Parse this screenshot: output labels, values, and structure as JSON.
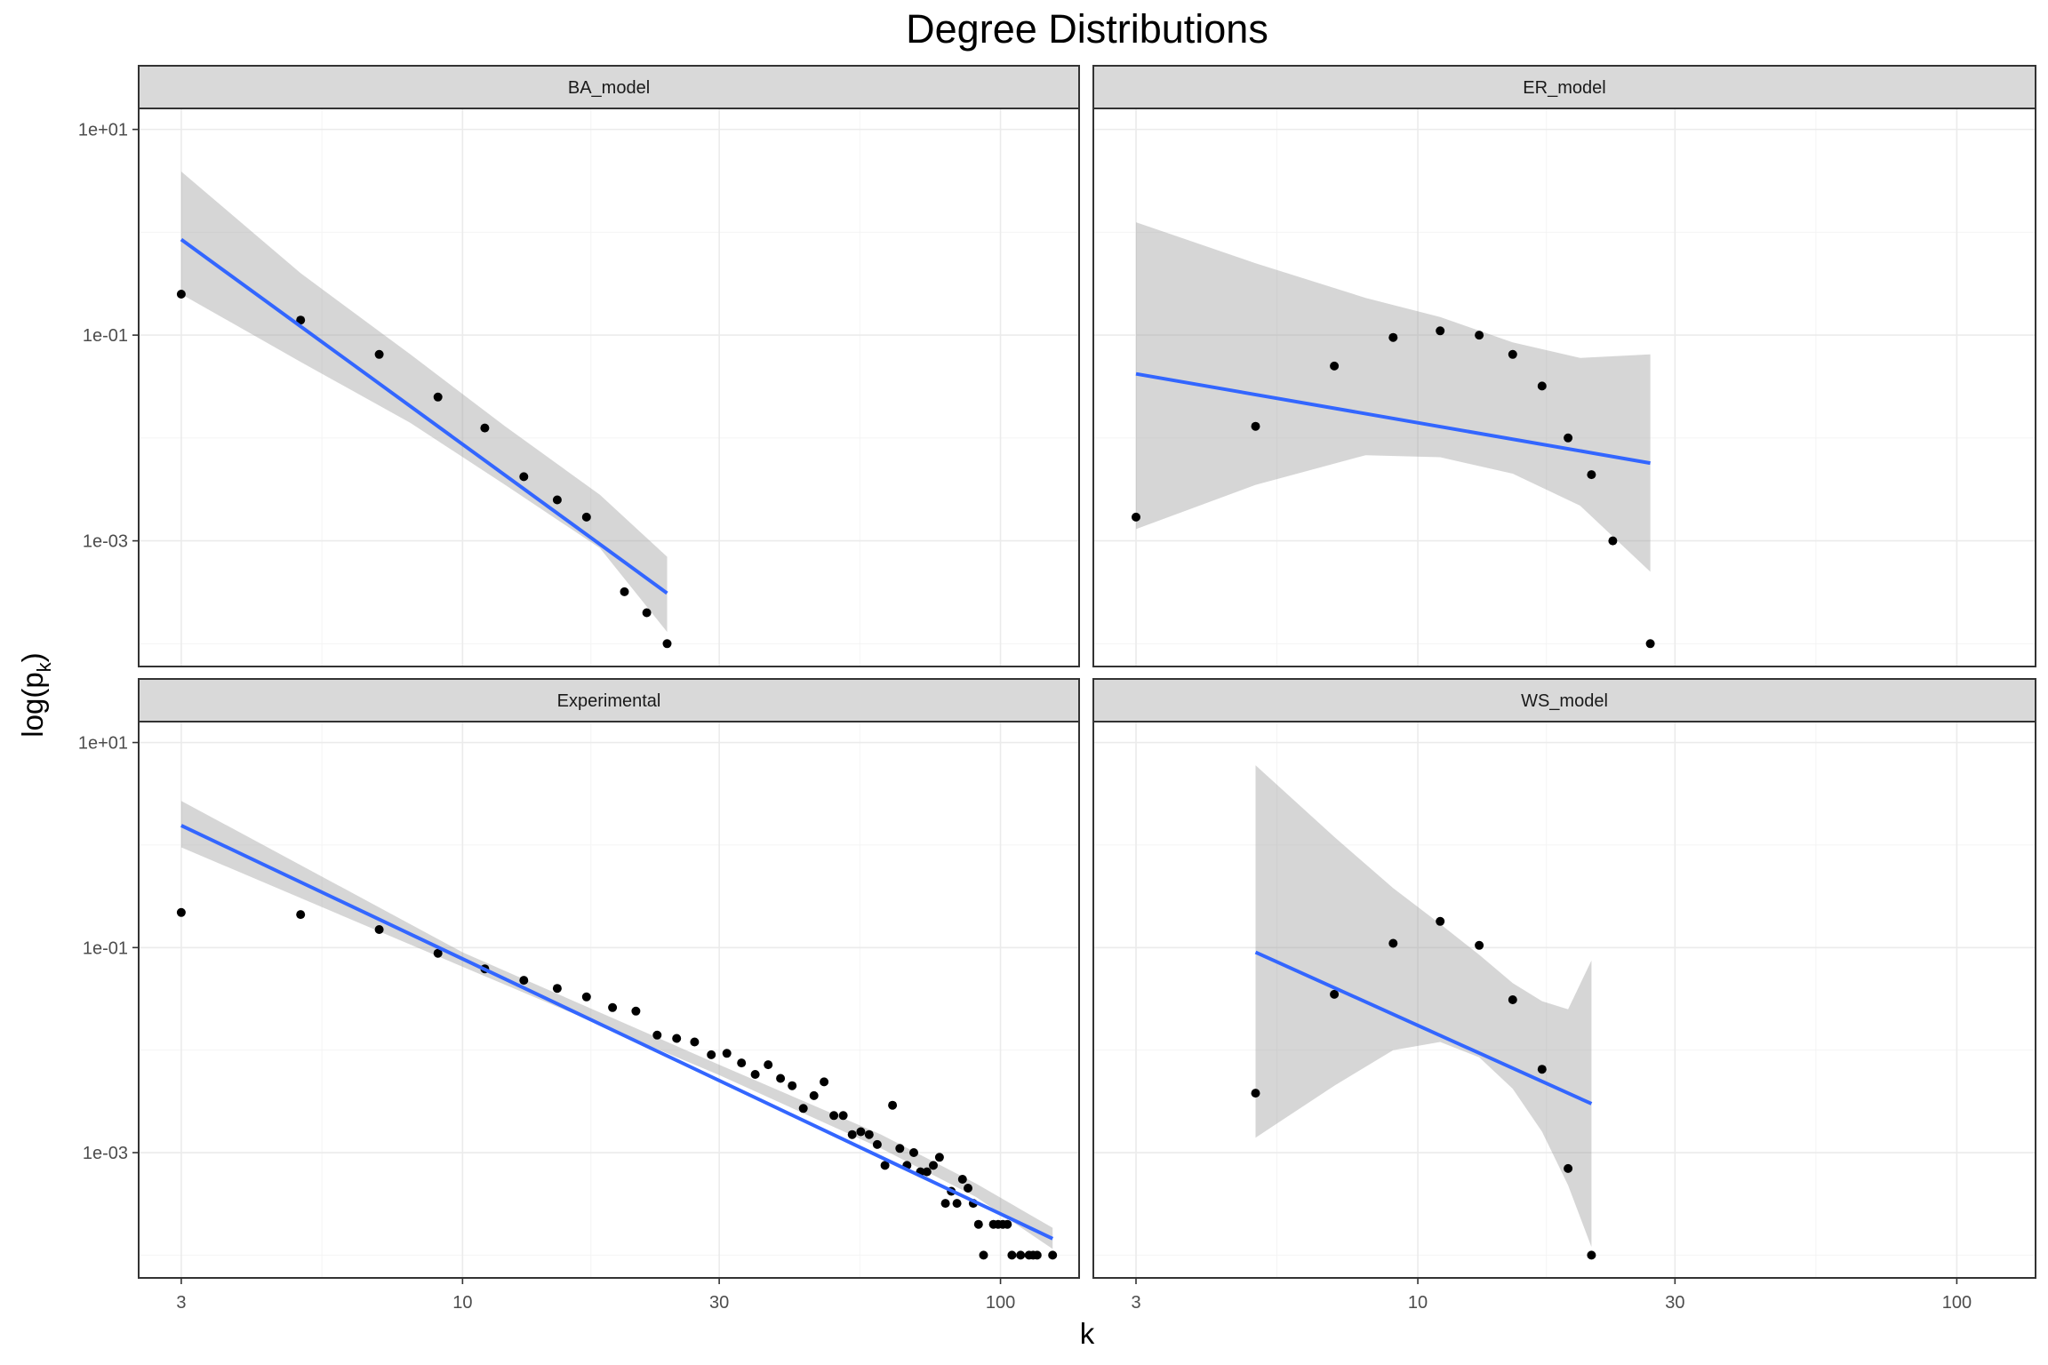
{
  "chart_data": {
    "type": "scatter",
    "title": "Degree Distributions",
    "xlabel": "k",
    "ylabel": "log(pk)",
    "ylabel_main": "log(p",
    "ylabel_sub": "k",
    "ylabel_close": ")",
    "x_scale": "log10",
    "y_scale": "log10",
    "xlim": [
      2.5,
      140
    ],
    "ylim": [
      6e-05,
      16
    ],
    "x_ticks": [
      3,
      10,
      30,
      100
    ],
    "x_tick_labels": [
      "3",
      "10",
      "30",
      "100"
    ],
    "y_ticks": [
      0.001,
      0.1,
      10
    ],
    "y_tick_labels": [
      "1e-03",
      "1e-01",
      "1e+01"
    ],
    "grid": true,
    "facets": [
      {
        "name": "BA_model",
        "points": [
          [
            3,
            0.25
          ],
          [
            5,
            0.14
          ],
          [
            7,
            0.065
          ],
          [
            9,
            0.025
          ],
          [
            11,
            0.0125
          ],
          [
            13,
            0.0042
          ],
          [
            15,
            0.0025
          ],
          [
            17,
            0.0017
          ],
          [
            20,
            0.00032
          ],
          [
            22,
            0.0002
          ],
          [
            24,
            0.0001
          ]
        ],
        "fit": {
          "x0": 3,
          "y0": 0.85,
          "x1": 24,
          "y1": 0.00031
        },
        "band": {
          "lower": [
            [
              3,
              0.25
            ],
            [
              5,
              0.055
            ],
            [
              8,
              0.014
            ],
            [
              12,
              0.0035
            ],
            [
              18,
              0.00085
            ],
            [
              24,
              0.00013
            ]
          ],
          "upper": [
            [
              3,
              3.9
            ],
            [
              5,
              0.4
            ],
            [
              8,
              0.065
            ],
            [
              12,
              0.013
            ],
            [
              18,
              0.0028
            ],
            [
              24,
              0.0007
            ]
          ]
        }
      },
      {
        "name": "ER_model",
        "points": [
          [
            3,
            0.0017
          ],
          [
            5,
            0.013
          ],
          [
            7,
            0.05
          ],
          [
            9,
            0.095
          ],
          [
            11,
            0.11
          ],
          [
            13,
            0.1
          ],
          [
            15,
            0.065
          ],
          [
            17,
            0.032
          ],
          [
            19,
            0.01
          ],
          [
            21,
            0.0044
          ],
          [
            23,
            0.001
          ],
          [
            27,
            0.0001
          ]
        ],
        "fit": {
          "x0": 3,
          "y0": 0.042,
          "x1": 27,
          "y1": 0.0057
        },
        "band": {
          "lower": [
            [
              3,
              0.0013
            ],
            [
              5,
              0.0035
            ],
            [
              8,
              0.0068
            ],
            [
              11,
              0.0065
            ],
            [
              15,
              0.0045
            ],
            [
              20,
              0.0022
            ],
            [
              27,
              0.0005
            ]
          ],
          "upper": [
            [
              3,
              1.25
            ],
            [
              5,
              0.5
            ],
            [
              8,
              0.23
            ],
            [
              11,
              0.15
            ],
            [
              15,
              0.085
            ],
            [
              20,
              0.06
            ],
            [
              27,
              0.065
            ]
          ]
        }
      },
      {
        "name": "Experimental",
        "points": [
          [
            3,
            0.22
          ],
          [
            5,
            0.21
          ],
          [
            7,
            0.15
          ],
          [
            9,
            0.088
          ],
          [
            11,
            0.062
          ],
          [
            13,
            0.048
          ],
          [
            15,
            0.04
          ],
          [
            17,
            0.033
          ],
          [
            19,
            0.026
          ],
          [
            21,
            0.024
          ],
          [
            23,
            0.014
          ],
          [
            25,
            0.013
          ],
          [
            27,
            0.012
          ],
          [
            29,
            0.009
          ],
          [
            31,
            0.0093
          ],
          [
            33,
            0.0075
          ],
          [
            35,
            0.0058
          ],
          [
            37,
            0.0072
          ],
          [
            39,
            0.0053
          ],
          [
            41,
            0.0045
          ],
          [
            43,
            0.0027
          ],
          [
            45,
            0.0036
          ],
          [
            47,
            0.0049
          ],
          [
            49,
            0.0023
          ],
          [
            51,
            0.0023
          ],
          [
            53,
            0.0015
          ],
          [
            55,
            0.0016
          ],
          [
            57,
            0.0015
          ],
          [
            59,
            0.0012
          ],
          [
            61,
            0.00075
          ],
          [
            63,
            0.0029
          ],
          [
            65,
            0.0011
          ],
          [
            67,
            0.00075
          ],
          [
            69,
            0.001
          ],
          [
            71,
            0.00065
          ],
          [
            73,
            0.00065
          ],
          [
            75,
            0.00075
          ],
          [
            77,
            0.0009
          ],
          [
            79,
            0.00032
          ],
          [
            81,
            0.00042
          ],
          [
            83,
            0.00032
          ],
          [
            85,
            0.00055
          ],
          [
            87,
            0.00045
          ],
          [
            89,
            0.00032
          ],
          [
            91,
            0.0002
          ],
          [
            93,
            0.0001
          ],
          [
            97,
            0.0002
          ],
          [
            99,
            0.0002
          ],
          [
            101,
            0.0002
          ],
          [
            103,
            0.0002
          ],
          [
            105,
            0.0001
          ],
          [
            109,
            0.0001
          ],
          [
            113,
            0.0001
          ],
          [
            115,
            0.0001
          ],
          [
            117,
            0.0001
          ],
          [
            125,
            0.0001
          ]
        ],
        "fit": {
          "x0": 3,
          "y0": 1.55,
          "x1": 125,
          "y1": 0.000145
        },
        "band": {
          "lower": [
            [
              3,
              0.95
            ],
            [
              10,
              0.065
            ],
            [
              30,
              0.0057
            ],
            [
              60,
              0.0011
            ],
            [
              90,
              0.00037
            ],
            [
              125,
              0.000115
            ]
          ],
          "upper": [
            [
              3,
              2.7
            ],
            [
              10,
              0.09
            ],
            [
              30,
              0.0072
            ],
            [
              60,
              0.0015
            ],
            [
              90,
              0.0005
            ],
            [
              125,
              0.000185
            ]
          ]
        }
      },
      {
        "name": "WS_model",
        "points": [
          [
            5,
            0.0038
          ],
          [
            7,
            0.035
          ],
          [
            9,
            0.11
          ],
          [
            11,
            0.18
          ],
          [
            13,
            0.105
          ],
          [
            15,
            0.031
          ],
          [
            17,
            0.0065
          ],
          [
            19,
            0.0007
          ],
          [
            21,
            0.0001
          ]
        ],
        "fit": {
          "x0": 5,
          "y0": 0.09,
          "x1": 21,
          "y1": 0.003
        },
        "band": {
          "lower": [
            [
              5,
              0.0014
            ],
            [
              7,
              0.0045
            ],
            [
              9,
              0.01
            ],
            [
              11,
              0.012
            ],
            [
              13,
              0.0085
            ],
            [
              15,
              0.0042
            ],
            [
              17,
              0.0016
            ],
            [
              19,
              0.00048
            ],
            [
              21,
              0.00012
            ]
          ],
          "upper": [
            [
              5,
              6.0
            ],
            [
              7,
              1.2
            ],
            [
              9,
              0.38
            ],
            [
              11,
              0.17
            ],
            [
              13,
              0.085
            ],
            [
              15,
              0.045
            ],
            [
              17,
              0.03
            ],
            [
              19,
              0.025
            ],
            [
              21,
              0.075
            ]
          ]
        }
      }
    ]
  }
}
